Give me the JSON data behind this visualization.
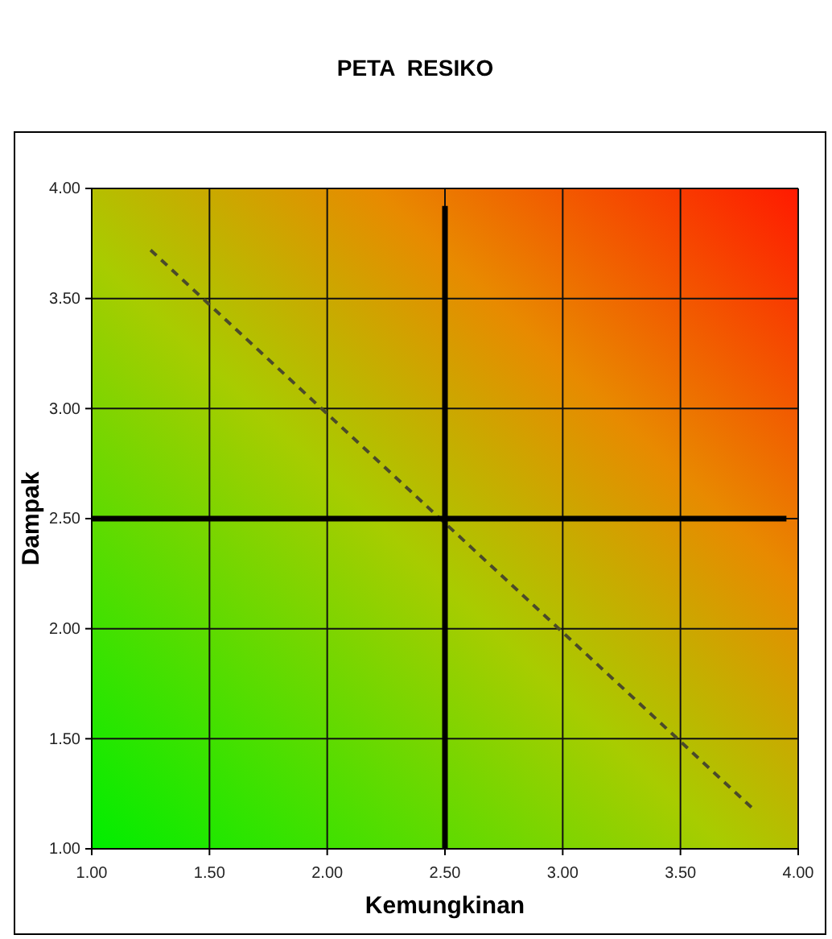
{
  "chart_data": {
    "type": "line",
    "title": "PETA  RESIKO",
    "xlabel": "Kemungkinan",
    "ylabel": "Dampak",
    "xlim": [
      1,
      4
    ],
    "ylim": [
      1,
      4
    ],
    "xticks": [
      {
        "value": 1,
        "label": "1.00"
      },
      {
        "value": 1.5,
        "label": "1.50"
      },
      {
        "value": 2,
        "label": "2.00"
      },
      {
        "value": 2.5,
        "label": "2.50"
      },
      {
        "value": 3,
        "label": "3.00"
      },
      {
        "value": 3.5,
        "label": "3.50"
      },
      {
        "value": 4,
        "label": "4.00"
      }
    ],
    "yticks": [
      {
        "value": 1,
        "label": "1.00"
      },
      {
        "value": 1.5,
        "label": "1.50"
      },
      {
        "value": 2,
        "label": "2.00"
      },
      {
        "value": 2.5,
        "label": "2.50"
      },
      {
        "value": 3,
        "label": "3.00"
      },
      {
        "value": 3.5,
        "label": "3.50"
      },
      {
        "value": 4,
        "label": "4.00"
      }
    ],
    "grid": true,
    "marker": "none",
    "series": [
      {
        "color": "#4a4a2a",
        "line_style": "dashed",
        "x": [
          1.25,
          3.82
        ],
        "values": [
          3.72,
          1.17
        ]
      },
      {
        "color": "#000000",
        "line_style": "solid",
        "x": [
          2.5,
          2.5
        ],
        "values": [
          1,
          3.92
        ]
      },
      {
        "color": "#000000",
        "line_style": "solid",
        "x": [
          1,
          3.95
        ],
        "values": [
          2.5,
          2.5
        ]
      }
    ]
  }
}
